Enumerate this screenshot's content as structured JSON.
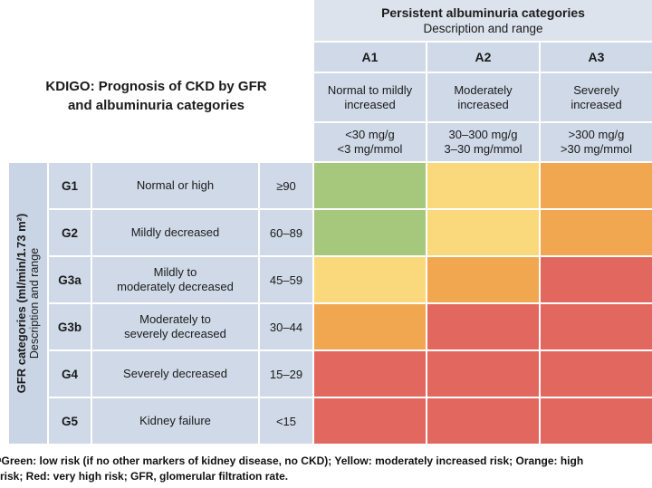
{
  "figure": {
    "kdigo_title": "KDIGO: Prognosis of CKD by GFR\nand albuminuria categories",
    "footnote": "ᵃGreen: low risk (if no other markers of kidney disease, no CKD); Yellow: moderately increased risk; Orange: high\nrisk; Red: very high risk; GFR, glomerular filtration rate."
  },
  "albuminuria": {
    "title": "Persistent albuminuria categories",
    "subtitle": "Description and range",
    "columns": [
      {
        "code": "A1",
        "description": "Normal to mildly\nincreased",
        "range": "<30 mg/g\n<3 mg/mmol"
      },
      {
        "code": "A2",
        "description": "Moderately\nincreased",
        "range": "30–300 mg/g\n3–30 mg/mmol"
      },
      {
        "code": "A3",
        "description": "Severely\nincreased",
        "range": ">300 mg/g\n>30 mg/mmol"
      }
    ]
  },
  "gfr": {
    "title": "GFR categories (ml/min/1.73 m²)",
    "subtitle": "Description and range"
  },
  "rows": [
    {
      "code": "G1",
      "description": "Normal or high",
      "range": "≥90",
      "risk": [
        "green",
        "yellow",
        "orange"
      ]
    },
    {
      "code": "G2",
      "description": "Mildly decreased",
      "range": "60–89",
      "risk": [
        "green",
        "yellow",
        "orange"
      ]
    },
    {
      "code": "G3a",
      "description": "Mildly to\nmoderately decreased",
      "range": "45–59",
      "risk": [
        "yellow",
        "orange",
        "red"
      ]
    },
    {
      "code": "G3b",
      "description": "Moderately to\nseverely decreased",
      "range": "30–44",
      "risk": [
        "orange",
        "red",
        "red"
      ]
    },
    {
      "code": "G4",
      "description": "Severely decreased",
      "range": "15–29",
      "risk": [
        "red",
        "red",
        "red"
      ]
    },
    {
      "code": "G5",
      "description": "Kidney failure",
      "range": "<15",
      "risk": [
        "red",
        "red",
        "red"
      ]
    }
  ],
  "risk_colors": {
    "green": "#a6c87c",
    "yellow": "#f9d97c",
    "orange": "#f1a74f",
    "red": "#e2685f"
  },
  "chart_data": {
    "type": "heatmap",
    "title": "KDIGO: Prognosis of CKD by GFR and albuminuria categories",
    "xlabel": "Persistent albuminuria categories (Description and range)",
    "ylabel": "GFR categories (ml/min/1.73 m²) (Description and range)",
    "x_categories": [
      "A1",
      "A2",
      "A3"
    ],
    "y_categories": [
      "G1",
      "G2",
      "G3a",
      "G3b",
      "G4",
      "G5"
    ],
    "values": [
      [
        "green",
        "yellow",
        "orange"
      ],
      [
        "green",
        "yellow",
        "orange"
      ],
      [
        "yellow",
        "orange",
        "red"
      ],
      [
        "orange",
        "red",
        "red"
      ],
      [
        "red",
        "red",
        "red"
      ],
      [
        "red",
        "red",
        "red"
      ]
    ],
    "legend": {
      "green": "low risk (if no other markers of kidney disease, no CKD)",
      "yellow": "moderately increased risk",
      "orange": "high risk",
      "red": "very high risk"
    }
  }
}
